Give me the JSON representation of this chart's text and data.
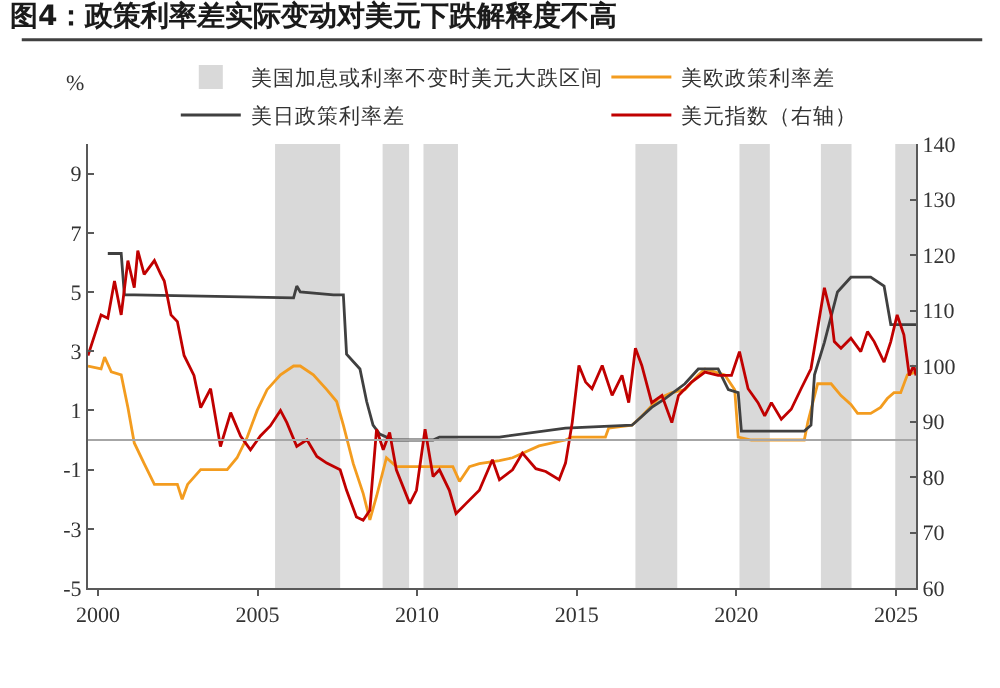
{
  "chart_data": {
    "type": "line",
    "title": "图4：政策利率差实际变动对美元下跌解释度不高",
    "ylabel": "%",
    "xlim": [
      1999.69,
      2025.63
    ],
    "xticks": [
      2000,
      2005,
      2010,
      2015,
      2020,
      2025
    ],
    "ylim": [
      -5,
      10
    ],
    "yticks": [
      -5,
      -3,
      -1,
      1,
      3,
      5,
      7,
      9
    ],
    "y2lim": [
      60,
      140
    ],
    "y2ticks": [
      60,
      70,
      80,
      90,
      100,
      110,
      120,
      130,
      140
    ],
    "grid": false,
    "legend": "top",
    "ref_lines": [
      {
        "axis": "y",
        "value": 0,
        "color": "#a6a6a6"
      }
    ],
    "bands": [
      {
        "axis": "x",
        "from": 2005.55,
        "to": 2007.59,
        "label": "美国加息或利率不变时美元大跌区间",
        "color": "#d9d9d9"
      },
      {
        "axis": "x",
        "from": 2008.92,
        "to": 2009.75,
        "color": "#d9d9d9"
      },
      {
        "axis": "x",
        "from": 2010.2,
        "to": 2011.28,
        "color": "#d9d9d9"
      },
      {
        "axis": "x",
        "from": 2016.84,
        "to": 2018.15,
        "color": "#d9d9d9"
      },
      {
        "axis": "x",
        "from": 2020.1,
        "to": 2021.05,
        "color": "#d9d9d9"
      },
      {
        "axis": "x",
        "from": 2022.65,
        "to": 2023.61,
        "color": "#d9d9d9"
      },
      {
        "axis": "x",
        "from": 2024.98,
        "to": 2025.63,
        "color": "#d9d9d9"
      }
    ],
    "series": [
      {
        "name": "美欧政策利率差",
        "color": "#f39c1f",
        "x": [
          1999.69,
          2000.1,
          2000.21,
          2000.42,
          2000.73,
          2000.94,
          2001.14,
          2001.45,
          2001.77,
          2002.49,
          2002.64,
          2002.81,
          2003.22,
          2004.05,
          2004.36,
          2004.68,
          2004.99,
          2005.3,
          2005.72,
          2006.13,
          2006.34,
          2006.75,
          2007.17,
          2007.48,
          2007.69,
          2008.0,
          2008.31,
          2008.52,
          2008.73,
          2009.04,
          2009.35,
          2009.87,
          2011.12,
          2011.33,
          2011.64,
          2011.95,
          2012.58,
          2012.99,
          2013.82,
          2014.65,
          2014.86,
          2015.9,
          2016.0,
          2016.73,
          2017.04,
          2017.56,
          2017.98,
          2018.39,
          2018.81,
          2019.02,
          2019.64,
          2019.95,
          2020.06,
          2020.47,
          2022.13,
          2022.24,
          2022.55,
          2022.97,
          2023.28,
          2023.59,
          2023.8,
          2024.21,
          2024.52,
          2024.73,
          2024.94,
          2025.15,
          2025.36,
          2025.63
        ],
        "values": [
          2.5,
          2.4,
          2.8,
          2.3,
          2.2,
          1.1,
          -0.1,
          -0.8,
          -1.5,
          -1.5,
          -2.0,
          -1.5,
          -1.0,
          -1.0,
          -0.6,
          0.1,
          1.0,
          1.7,
          2.2,
          2.5,
          2.5,
          2.2,
          1.7,
          1.3,
          0.5,
          -0.8,
          -1.8,
          -2.7,
          -1.9,
          -0.6,
          -0.9,
          -0.9,
          -0.9,
          -1.4,
          -0.9,
          -0.8,
          -0.7,
          -0.6,
          -0.2,
          0.0,
          0.1,
          0.1,
          0.4,
          0.5,
          0.8,
          1.4,
          1.6,
          1.7,
          2.2,
          2.4,
          2.2,
          1.7,
          0.1,
          0.0,
          0.0,
          0.6,
          1.9,
          1.9,
          1.5,
          1.2,
          0.9,
          0.9,
          1.1,
          1.4,
          1.6,
          1.6,
          2.2,
          2.3
        ]
      },
      {
        "name": "美日政策利率差",
        "color": "#404040",
        "x": [
          2000.31,
          2000.73,
          2000.83,
          2001.14,
          2006.13,
          2006.23,
          2006.34,
          2007.38,
          2007.69,
          2007.79,
          2008.21,
          2008.42,
          2008.62,
          2008.83,
          2009.25,
          2010.5,
          2010.7,
          2012.58,
          2014.65,
          2016.73,
          2016.84,
          2017.35,
          2017.77,
          2018.39,
          2018.81,
          2019.43,
          2019.75,
          2020.06,
          2020.16,
          2022.13,
          2022.34,
          2022.45,
          2022.76,
          2023.17,
          2023.59,
          2024.21,
          2024.63,
          2024.84,
          2025.63
        ],
        "values": [
          6.3,
          6.3,
          4.9,
          4.9,
          4.8,
          5.2,
          5.0,
          4.9,
          4.9,
          2.9,
          2.4,
          1.3,
          0.5,
          0.2,
          0.0,
          0.0,
          0.1,
          0.1,
          0.4,
          0.5,
          0.6,
          1.1,
          1.4,
          1.9,
          2.4,
          2.4,
          1.7,
          1.6,
          0.3,
          0.3,
          0.5,
          2.2,
          3.3,
          5.0,
          5.5,
          5.5,
          5.2,
          3.9,
          3.9
        ]
      },
      {
        "name": "美元指数（右轴）",
        "color": "#c00000",
        "axis": "y2",
        "x": [
          1999.69,
          1999.9,
          2000.1,
          2000.31,
          2000.52,
          2000.73,
          2000.94,
          2001.14,
          2001.25,
          2001.45,
          2001.77,
          2001.97,
          2002.08,
          2002.29,
          2002.49,
          2002.7,
          2003.01,
          2003.22,
          2003.53,
          2003.84,
          2004.16,
          2004.47,
          2004.78,
          2005.09,
          2005.4,
          2005.72,
          2005.92,
          2006.23,
          2006.55,
          2006.86,
          2007.17,
          2007.59,
          2007.79,
          2008.1,
          2008.31,
          2008.52,
          2008.73,
          2008.94,
          2009.14,
          2009.35,
          2009.77,
          2009.98,
          2010.25,
          2010.5,
          2010.7,
          2011.01,
          2011.22,
          2011.53,
          2011.95,
          2012.36,
          2012.58,
          2012.99,
          2013.3,
          2013.72,
          2014.03,
          2014.45,
          2014.65,
          2014.86,
          2015.07,
          2015.28,
          2015.48,
          2015.8,
          2016.11,
          2016.42,
          2016.63,
          2016.84,
          2017.04,
          2017.35,
          2017.67,
          2017.98,
          2018.19,
          2018.6,
          2019.02,
          2019.43,
          2019.85,
          2020.1,
          2020.37,
          2020.68,
          2020.89,
          2021.1,
          2021.41,
          2021.72,
          2022.03,
          2022.34,
          2022.55,
          2022.76,
          2022.97,
          2023.07,
          2023.28,
          2023.59,
          2023.9,
          2024.11,
          2024.32,
          2024.63,
          2024.84,
          2025.04,
          2025.25,
          2025.42,
          2025.56,
          2025.63
        ],
        "values": [
          101.9,
          105.6,
          109.2,
          108.6,
          115.3,
          109.2,
          119.0,
          114.1,
          120.8,
          116.5,
          119.0,
          116.5,
          115.3,
          109.2,
          108.0,
          101.9,
          98.3,
          92.5,
          95.9,
          85.5,
          91.6,
          87.4,
          84.9,
          87.4,
          89.2,
          92.0,
          89.8,
          85.5,
          86.7,
          83.7,
          82.5,
          81.3,
          77.6,
          72.8,
          72.2,
          74.0,
          88.6,
          84.9,
          88.0,
          81.3,
          75.2,
          77.6,
          88.6,
          80.1,
          81.3,
          77.6,
          73.4,
          75.2,
          77.6,
          83.1,
          79.5,
          81.3,
          84.3,
          81.5,
          81.0,
          79.5,
          82.5,
          89.8,
          100.1,
          97.1,
          95.9,
          100.1,
          94.7,
          98.3,
          93.4,
          103.2,
          100.1,
          93.4,
          94.7,
          89.8,
          94.7,
          97.1,
          98.9,
          98.3,
          98.3,
          102.6,
          95.9,
          93.4,
          91.0,
          93.4,
          90.4,
          92.2,
          95.9,
          99.5,
          106.8,
          114.1,
          109.2,
          104.4,
          103.2,
          105.0,
          102.6,
          106.2,
          104.4,
          100.7,
          104.4,
          109.2,
          105.6,
          98.3,
          100.1,
          98.3
        ]
      }
    ]
  }
}
